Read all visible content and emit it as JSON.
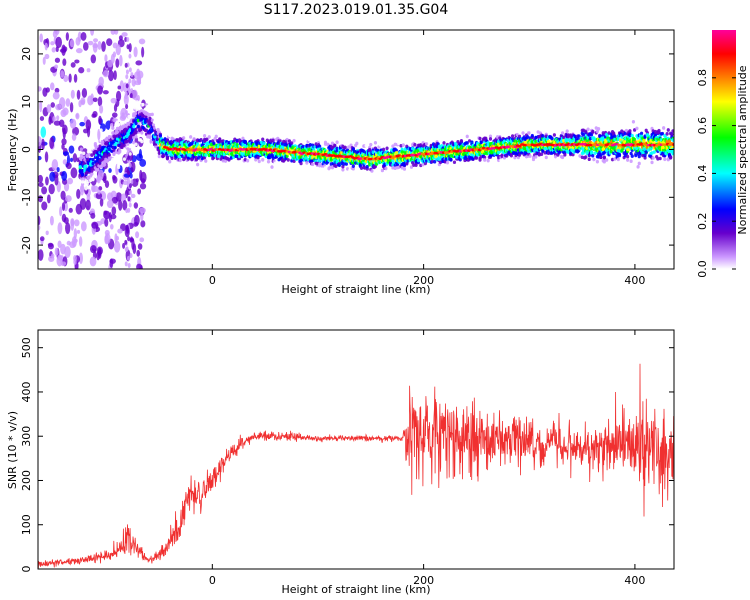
{
  "title": "S117.2023.019.01.35.G04",
  "colors": {
    "snr_line": "#f03030",
    "background": "#ffffff",
    "axes": "#000000"
  },
  "chart_data": [
    {
      "type": "heatmap",
      "description": "spectrogram of received signal frequency vs straight-line height",
      "xlabel": "Height of straight line (km)",
      "ylabel": "Frequency (Hz)",
      "xlim": [
        -165,
        437
      ],
      "ylim": [
        -25,
        25
      ],
      "x_ticks": [
        0,
        200,
        400
      ],
      "y_ticks": [
        -20,
        -10,
        0,
        10,
        20
      ],
      "colorbar": {
        "label": "Normalized spectral amplitude",
        "range": [
          0.0,
          1.0
        ],
        "ticks": [
          "0.0",
          "0.2",
          "0.4",
          "0.6",
          "0.8"
        ],
        "palette": [
          "#ffffff",
          "#cc99ff",
          "#6600cc",
          "#0000ff",
          "#00ffff",
          "#00ff00",
          "#ffff00",
          "#ff8000",
          "#ff0000",
          "#ff0099"
        ]
      },
      "ridge": {
        "x": [
          -120,
          -100,
          -80,
          -70,
          -60,
          -50,
          -40,
          0,
          50,
          100,
          150,
          200,
          250,
          300,
          350,
          400,
          437
        ],
        "y": [
          -4,
          0,
          3,
          6,
          5,
          1,
          0,
          0,
          0,
          -1,
          -2,
          -1,
          0,
          1,
          1,
          1,
          1
        ]
      }
    },
    {
      "type": "line",
      "xlabel": "Height of straight line (km)",
      "ylabel": "SNR (10 * v/v)",
      "xlim": [
        -165,
        437
      ],
      "ylim": [
        0,
        540
      ],
      "x_ticks": [
        0,
        200,
        400
      ],
      "y_ticks": [
        0,
        100,
        200,
        300,
        400,
        500
      ],
      "envelope": {
        "x": [
          -165,
          -120,
          -100,
          -90,
          -80,
          -70,
          -60,
          -50,
          -40,
          -30,
          -20,
          -10,
          0,
          20,
          40,
          60,
          80,
          100,
          120,
          150,
          180,
          185,
          190,
          200,
          230,
          260,
          290,
          320,
          350,
          380,
          400,
          420,
          437
        ],
        "mean": [
          10,
          20,
          30,
          40,
          70,
          40,
          20,
          30,
          60,
          110,
          170,
          170,
          200,
          270,
          300,
          300,
          300,
          295,
          295,
          295,
          295,
          300,
          300,
          300,
          300,
          290,
          290,
          285,
          275,
          275,
          280,
          270,
          270
        ],
        "spread": [
          10,
          15,
          20,
          30,
          55,
          30,
          10,
          20,
          40,
          60,
          60,
          50,
          40,
          25,
          15,
          15,
          15,
          10,
          10,
          10,
          10,
          120,
          150,
          150,
          130,
          110,
          80,
          60,
          60,
          90,
          110,
          140,
          120
        ]
      }
    }
  ]
}
